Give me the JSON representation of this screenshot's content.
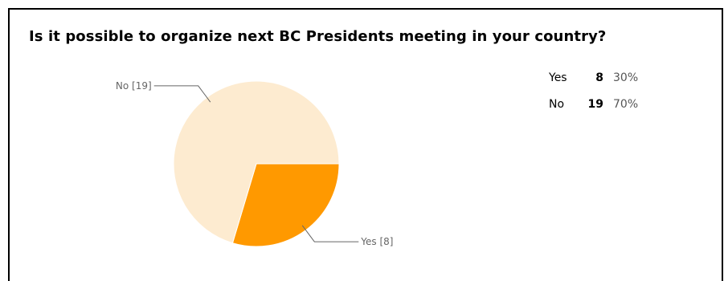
{
  "chart_data": {
    "type": "pie",
    "title": "Is it possible to organize next BC Presidents meeting in your country?",
    "slices": [
      {
        "label": "Yes",
        "value": 8,
        "percent": "30%",
        "callout": "Yes [8]",
        "color": "#FF9900"
      },
      {
        "label": "No",
        "value": 19,
        "percent": "70%",
        "callout": "No [19]",
        "color": "#FDEBD0"
      }
    ],
    "legend_position": "right",
    "line_color": "#666666",
    "text_color": "#666666"
  }
}
